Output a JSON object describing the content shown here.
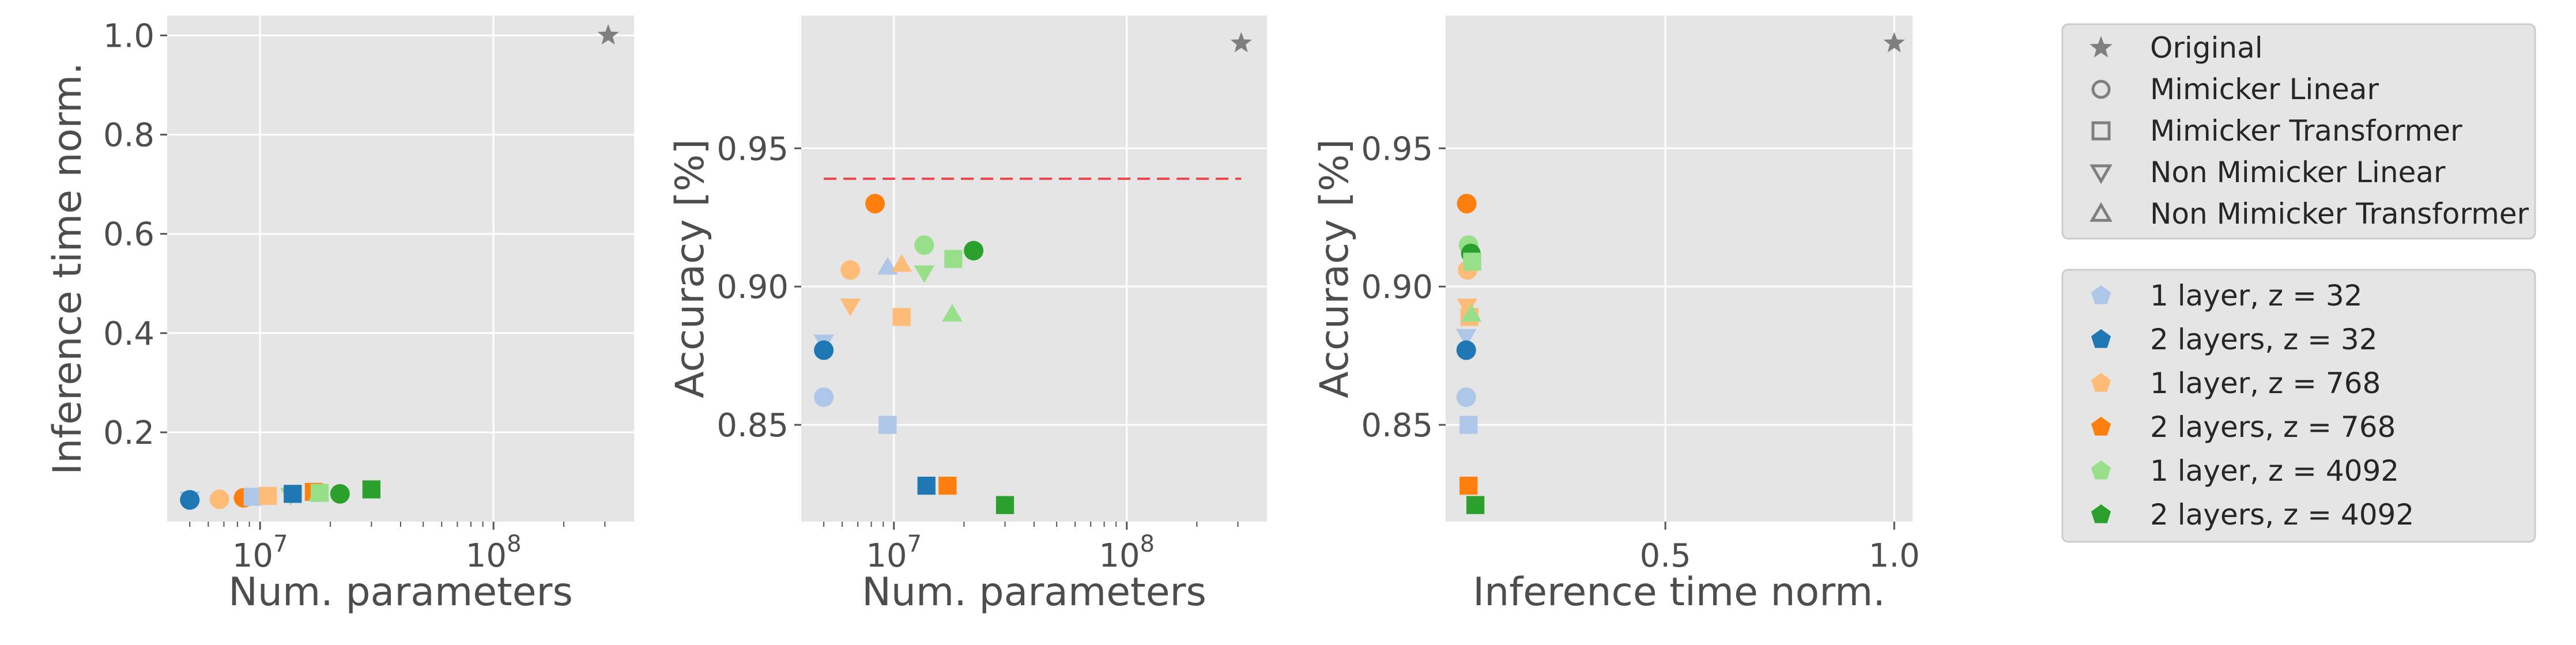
{
  "legend_markers": {
    "items": [
      {
        "label": "Original",
        "marker": "star"
      },
      {
        "label": "Mimicker Linear",
        "marker": "circle"
      },
      {
        "label": "Mimicker Transformer",
        "marker": "square"
      },
      {
        "label": "Non Mimicker Linear",
        "marker": "triangle-down"
      },
      {
        "label": "Non Mimicker Transformer",
        "marker": "triangle-up"
      }
    ]
  },
  "legend_configs": {
    "items": [
      {
        "label": "1 layer, z = 32",
        "color": "#aec7e8"
      },
      {
        "label": "2 layers, z = 32",
        "color": "#1f77b4"
      },
      {
        "label": "1 layer, z = 768",
        "color": "#ffbb78"
      },
      {
        "label": "2 layers, z = 768",
        "color": "#ff7f0e"
      },
      {
        "label": "1 layer, z = 4092",
        "color": "#98df8a"
      },
      {
        "label": "2 layers, z = 4092",
        "color": "#2ca02c"
      }
    ]
  },
  "chart_data": [
    {
      "type": "scatter",
      "xlabel": "Num. parameters",
      "ylabel": "Inference time norm.",
      "xscale": "log",
      "xlim": [
        4000000,
        400000000
      ],
      "ylim": [
        0.02,
        1.04
      ],
      "yticks": [
        0.2,
        0.4,
        0.6,
        0.8,
        1.0
      ],
      "ytick_labels": [
        "0.2",
        "0.4",
        "0.6",
        "0.8",
        "1.0"
      ],
      "xticks": [
        10000000,
        100000000
      ],
      "xtick_labels": [
        "10^7",
        "10^8"
      ],
      "grid": true,
      "reference_line": null,
      "points": [
        {
          "x": 5000000,
          "y": 0.063,
          "marker": "circle",
          "color": "#aec7e8"
        },
        {
          "x": 5000000,
          "y": 0.066,
          "marker": "triangle-down",
          "color": "#aec7e8"
        },
        {
          "x": 5000000,
          "y": 0.064,
          "marker": "circle",
          "color": "#1f77b4"
        },
        {
          "x": 6700000,
          "y": 0.065,
          "marker": "circle",
          "color": "#ffbb78"
        },
        {
          "x": 8500000,
          "y": 0.068,
          "marker": "circle",
          "color": "#ff7f0e"
        },
        {
          "x": 9300000,
          "y": 0.07,
          "marker": "square",
          "color": "#aec7e8"
        },
        {
          "x": 10800000,
          "y": 0.072,
          "marker": "square",
          "color": "#ffbb78"
        },
        {
          "x": 13500000,
          "y": 0.073,
          "marker": "triangle-down",
          "color": "#98df8a"
        },
        {
          "x": 13800000,
          "y": 0.076,
          "marker": "square",
          "color": "#1f77b4"
        },
        {
          "x": 17000000,
          "y": 0.08,
          "marker": "square",
          "color": "#ff7f0e"
        },
        {
          "x": 17800000,
          "y": 0.076,
          "marker": "triangle-up",
          "color": "#98df8a"
        },
        {
          "x": 18000000,
          "y": 0.078,
          "marker": "square",
          "color": "#98df8a"
        },
        {
          "x": 22000000,
          "y": 0.076,
          "marker": "circle",
          "color": "#2ca02c"
        },
        {
          "x": 30000000,
          "y": 0.085,
          "marker": "square",
          "color": "#2ca02c"
        },
        {
          "x": 310000000,
          "y": 1.0,
          "marker": "star",
          "color": "#7f7f7f"
        }
      ]
    },
    {
      "type": "scatter",
      "xlabel": "Num. parameters",
      "ylabel": "Accuracy [%]",
      "xscale": "log",
      "xlim": [
        4000000,
        400000000
      ],
      "ylim": [
        0.815,
        0.998
      ],
      "yticks": [
        0.85,
        0.9,
        0.95
      ],
      "ytick_labels": [
        "0.85",
        "0.90",
        "0.95"
      ],
      "xticks": [
        10000000,
        100000000
      ],
      "xtick_labels": [
        "10^7",
        "10^8"
      ],
      "grid": true,
      "reference_line": {
        "y": 0.939,
        "x_from": 5000000,
        "x_to": 310000000,
        "color": "#e8474f",
        "style": "dashed"
      },
      "points": [
        {
          "x": 5000000,
          "y": 0.86,
          "marker": "circle",
          "color": "#aec7e8"
        },
        {
          "x": 5000000,
          "y": 0.88,
          "marker": "triangle-down",
          "color": "#aec7e8"
        },
        {
          "x": 5000000,
          "y": 0.877,
          "marker": "circle",
          "color": "#1f77b4"
        },
        {
          "x": 6500000,
          "y": 0.906,
          "marker": "circle",
          "color": "#ffbb78"
        },
        {
          "x": 6500000,
          "y": 0.893,
          "marker": "triangle-down",
          "color": "#ffbb78"
        },
        {
          "x": 8300000,
          "y": 0.93,
          "marker": "circle",
          "color": "#ff7f0e"
        },
        {
          "x": 9400000,
          "y": 0.907,
          "marker": "triangle-up",
          "color": "#aec7e8"
        },
        {
          "x": 9400000,
          "y": 0.85,
          "marker": "square",
          "color": "#aec7e8"
        },
        {
          "x": 10800000,
          "y": 0.889,
          "marker": "square",
          "color": "#ffbb78"
        },
        {
          "x": 10800000,
          "y": 0.908,
          "marker": "triangle-up",
          "color": "#ffbb78"
        },
        {
          "x": 13500000,
          "y": 0.915,
          "marker": "circle",
          "color": "#98df8a"
        },
        {
          "x": 13500000,
          "y": 0.905,
          "marker": "triangle-down",
          "color": "#98df8a"
        },
        {
          "x": 13800000,
          "y": 0.828,
          "marker": "square",
          "color": "#1f77b4"
        },
        {
          "x": 17000000,
          "y": 0.828,
          "marker": "square",
          "color": "#ff7f0e"
        },
        {
          "x": 18000000,
          "y": 0.91,
          "marker": "square",
          "color": "#98df8a"
        },
        {
          "x": 17800000,
          "y": 0.89,
          "marker": "triangle-up",
          "color": "#98df8a"
        },
        {
          "x": 22000000,
          "y": 0.913,
          "marker": "circle",
          "color": "#2ca02c"
        },
        {
          "x": 30000000,
          "y": 0.821,
          "marker": "square",
          "color": "#2ca02c"
        },
        {
          "x": 310000000,
          "y": 0.988,
          "marker": "star",
          "color": "#7f7f7f"
        }
      ]
    },
    {
      "type": "scatter",
      "xlabel": "Inference time norm.",
      "ylabel": "Accuracy [%]",
      "xscale": "linear",
      "xlim": [
        0.02,
        1.04
      ],
      "ylim": [
        0.815,
        0.998
      ],
      "yticks": [
        0.85,
        0.9,
        0.95
      ],
      "ytick_labels": [
        "0.85",
        "0.90",
        "0.95"
      ],
      "xticks": [
        0.5,
        1.0
      ],
      "xtick_labels": [
        "0.5",
        "1.0"
      ],
      "grid": true,
      "reference_line": null,
      "points": [
        {
          "x": 0.065,
          "y": 0.86,
          "marker": "circle",
          "color": "#aec7e8"
        },
        {
          "x": 0.065,
          "y": 0.882,
          "marker": "triangle-down",
          "color": "#aec7e8"
        },
        {
          "x": 0.065,
          "y": 0.877,
          "marker": "circle",
          "color": "#1f77b4"
        },
        {
          "x": 0.068,
          "y": 0.906,
          "marker": "circle",
          "color": "#ffbb78"
        },
        {
          "x": 0.067,
          "y": 0.893,
          "marker": "triangle-down",
          "color": "#ffbb78"
        },
        {
          "x": 0.066,
          "y": 0.93,
          "marker": "circle",
          "color": "#ff7f0e"
        },
        {
          "x": 0.07,
          "y": 0.85,
          "marker": "square",
          "color": "#aec7e8"
        },
        {
          "x": 0.072,
          "y": 0.889,
          "marker": "square",
          "color": "#ffbb78"
        },
        {
          "x": 0.07,
          "y": 0.915,
          "marker": "circle",
          "color": "#98df8a"
        },
        {
          "x": 0.075,
          "y": 0.912,
          "marker": "circle",
          "color": "#2ca02c"
        },
        {
          "x": 0.078,
          "y": 0.909,
          "marker": "square",
          "color": "#98df8a"
        },
        {
          "x": 0.076,
          "y": 0.89,
          "marker": "triangle-up",
          "color": "#98df8a"
        },
        {
          "x": 0.07,
          "y": 0.828,
          "marker": "square",
          "color": "#ff7f0e"
        },
        {
          "x": 0.085,
          "y": 0.821,
          "marker": "square",
          "color": "#2ca02c"
        },
        {
          "x": 1.0,
          "y": 0.988,
          "marker": "star",
          "color": "#7f7f7f"
        }
      ]
    }
  ]
}
